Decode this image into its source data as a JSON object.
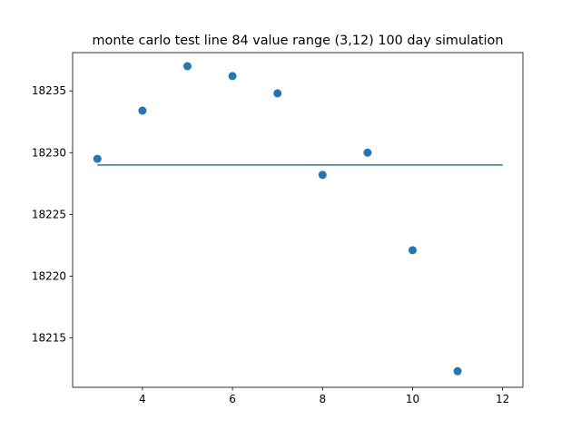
{
  "chart_data": {
    "type": "scatter",
    "title": "monte carlo test line 84 value range (3,12) 100 day simulation",
    "xlabel": "",
    "ylabel": "",
    "xlim": [
      2.45,
      12.45
    ],
    "ylim": [
      18211.0,
      18238.1
    ],
    "x_ticks": [
      4,
      6,
      8,
      10,
      12
    ],
    "y_ticks": [
      18215,
      18220,
      18225,
      18230,
      18235
    ],
    "grid": false,
    "series": [
      {
        "type": "scatter",
        "color": "#1f77b4",
        "points": [
          {
            "x": 3,
            "y": 18229.5
          },
          {
            "x": 4,
            "y": 18233.4
          },
          {
            "x": 5,
            "y": 18237.0
          },
          {
            "x": 6,
            "y": 18236.2
          },
          {
            "x": 7,
            "y": 18234.8
          },
          {
            "x": 8,
            "y": 18228.2
          },
          {
            "x": 9,
            "y": 18230.0
          },
          {
            "x": 10,
            "y": 18222.1
          },
          {
            "x": 11,
            "y": 18212.3
          }
        ]
      },
      {
        "type": "line",
        "color": "#1f77b4",
        "points": [
          {
            "x": 3,
            "y": 18229.0
          },
          {
            "x": 12,
            "y": 18229.0
          }
        ]
      }
    ]
  }
}
